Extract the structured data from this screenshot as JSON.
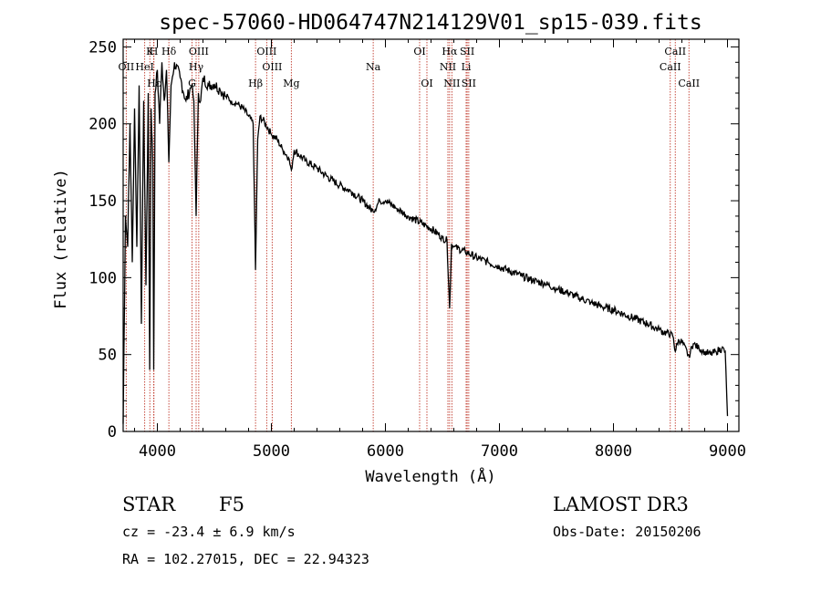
{
  "chart_data": {
    "type": "line",
    "title": "spec-57060-HD064747N214129V01_sp15-039.fits",
    "xlabel": "Wavelength (Å)",
    "ylabel": "Flux (relative)",
    "xlim": [
      3700,
      9100
    ],
    "ylim": [
      0,
      255
    ],
    "x_ticks": [
      4000,
      5000,
      6000,
      7000,
      8000,
      9000
    ],
    "x_tick_labels": [
      "4000",
      "5000",
      "6000",
      "7000",
      "8000",
      "9000"
    ],
    "y_ticks": [
      0,
      50,
      100,
      150,
      200,
      250
    ],
    "y_tick_labels": [
      "0",
      "50",
      "100",
      "150",
      "200",
      "250"
    ],
    "series": [
      {
        "name": "flux",
        "x": [
          3700,
          3720,
          3740,
          3760,
          3780,
          3800,
          3820,
          3840,
          3860,
          3880,
          3900,
          3920,
          3933,
          3945,
          3960,
          3968,
          3980,
          4000,
          4020,
          4040,
          4060,
          4080,
          4101,
          4120,
          4150,
          4200,
          4250,
          4300,
          4320,
          4340,
          4360,
          4380,
          4400,
          4450,
          4500,
          4550,
          4600,
          4650,
          4700,
          4750,
          4800,
          4840,
          4861,
          4880,
          4900,
          4950,
          5000,
          5050,
          5100,
          5150,
          5175,
          5200,
          5300,
          5400,
          5500,
          5600,
          5700,
          5800,
          5893,
          5950,
          6000,
          6100,
          6200,
          6300,
          6400,
          6500,
          6540,
          6563,
          6580,
          6600,
          6700,
          6800,
          6900,
          7000,
          7100,
          7200,
          7300,
          7400,
          7500,
          7600,
          7700,
          7800,
          7900,
          8000,
          8100,
          8200,
          8300,
          8400,
          8498,
          8520,
          8542,
          8570,
          8600,
          8662,
          8700,
          8750,
          8800,
          8850,
          8900,
          8950,
          8980,
          9000
        ],
        "values": [
          5,
          140,
          120,
          200,
          110,
          210,
          120,
          225,
          70,
          215,
          95,
          220,
          40,
          210,
          175,
          40,
          220,
          235,
          200,
          240,
          215,
          235,
          175,
          225,
          240,
          230,
          215,
          225,
          215,
          140,
          220,
          215,
          230,
          225,
          226,
          222,
          218,
          215,
          213,
          210,
          205,
          200,
          105,
          190,
          205,
          200,
          193,
          190,
          183,
          178,
          170,
          183,
          176,
          171,
          165,
          160,
          156,
          150,
          143,
          150,
          150,
          145,
          140,
          136,
          132,
          126,
          124,
          80,
          122,
          120,
          117,
          113,
          110,
          107,
          104,
          101,
          98,
          96,
          93,
          90,
          87,
          84,
          81,
          79,
          76,
          73,
          70,
          66,
          63,
          62,
          52,
          60,
          58,
          49,
          57,
          54,
          52,
          50,
          52,
          54,
          52,
          10
        ]
      }
    ],
    "lines": [
      {
        "name": "Hδ",
        "x": 4101,
        "row": 0
      },
      {
        "name": "K",
        "x": 3934,
        "row": 0
      },
      {
        "name": "H",
        "x": 3968,
        "row": 0
      },
      {
        "name": "OII",
        "x": 3727,
        "row": 1
      },
      {
        "name": "HeI",
        "x": 3889,
        "row": 1
      },
      {
        "name": "Hε",
        "x": 3970,
        "row": 2
      },
      {
        "name": "OIII",
        "x": 4363,
        "row": 0
      },
      {
        "name": "Hγ",
        "x": 4340,
        "row": 1
      },
      {
        "name": "G",
        "x": 4304,
        "row": 2
      },
      {
        "name": "OIII",
        "x": 4959,
        "row": 0
      },
      {
        "name": "OIII",
        "x": 5007,
        "row": 1
      },
      {
        "name": "Hβ",
        "x": 4861,
        "row": 2
      },
      {
        "name": "Mg",
        "x": 5175,
        "row": 2
      },
      {
        "name": "Na",
        "x": 5893,
        "row": 1
      },
      {
        "name": "OI",
        "x": 6300,
        "row": 0
      },
      {
        "name": "OI",
        "x": 6364,
        "row": 2
      },
      {
        "name": "Hα",
        "x": 6563,
        "row": 0
      },
      {
        "name": "NII",
        "x": 6548,
        "row": 1
      },
      {
        "name": "NII",
        "x": 6583,
        "row": 2
      },
      {
        "name": "SII",
        "x": 6717,
        "row": 0
      },
      {
        "name": "Li",
        "x": 6708,
        "row": 1
      },
      {
        "name": "SII",
        "x": 6731,
        "row": 2
      },
      {
        "name": "CaII",
        "x": 8542,
        "row": 0
      },
      {
        "name": "CaII",
        "x": 8498,
        "row": 1
      },
      {
        "name": "CaII",
        "x": 8662,
        "row": 2
      }
    ]
  },
  "info": {
    "object_class": "STAR",
    "subclass": "F5",
    "survey": "LAMOST DR3",
    "cz": "cz = -23.4 ± 6.9 km/s",
    "obs_date": "Obs-Date: 20150206",
    "coords": "RA = 102.27015, DEC =  22.94323"
  },
  "colors": {
    "spectrum": "#000000",
    "line_markers": "#c0392b",
    "axes": "#000000"
  }
}
